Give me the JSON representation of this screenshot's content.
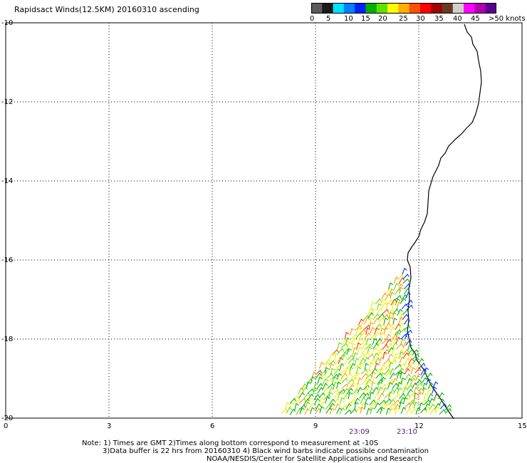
{
  "title": "Rapidsact Winds(12.5KM) 20160310 ascending",
  "colorbar": {
    "colors": [
      "#5a5a5a",
      "#1a1a1a",
      "#00e0ff",
      "#0080ff",
      "#0020ff",
      "#00b000",
      "#60e000",
      "#ffff00",
      "#ffb000",
      "#ff5000",
      "#ff0000",
      "#a00000",
      "#6a3a20",
      "#d0d0d0",
      "#ff00ff",
      "#b000b0",
      "#5a0090"
    ],
    "labels": [
      "0",
      "5",
      "10",
      "15",
      "20",
      "25",
      "30",
      "35",
      "40",
      "45",
      ">50 knots"
    ]
  },
  "axes": {
    "y_ticks": [
      "-10",
      "-12",
      "-14",
      "-16",
      "-18",
      "-20"
    ],
    "x_ticks": [
      "0",
      "3",
      "6",
      "9",
      "12",
      "15"
    ]
  },
  "times": [
    "23:09",
    "23:10"
  ],
  "notes": [
    "Note: 1) Times are GMT 2)Times along bottom correspond to measurement at -10S",
    "3)Data buffer is 22 hrs from 20160310 4) Black wind barbs indicate possible contamination",
    "NOAA/NESDIS/Center for Satellite Applications and Research"
  ]
}
